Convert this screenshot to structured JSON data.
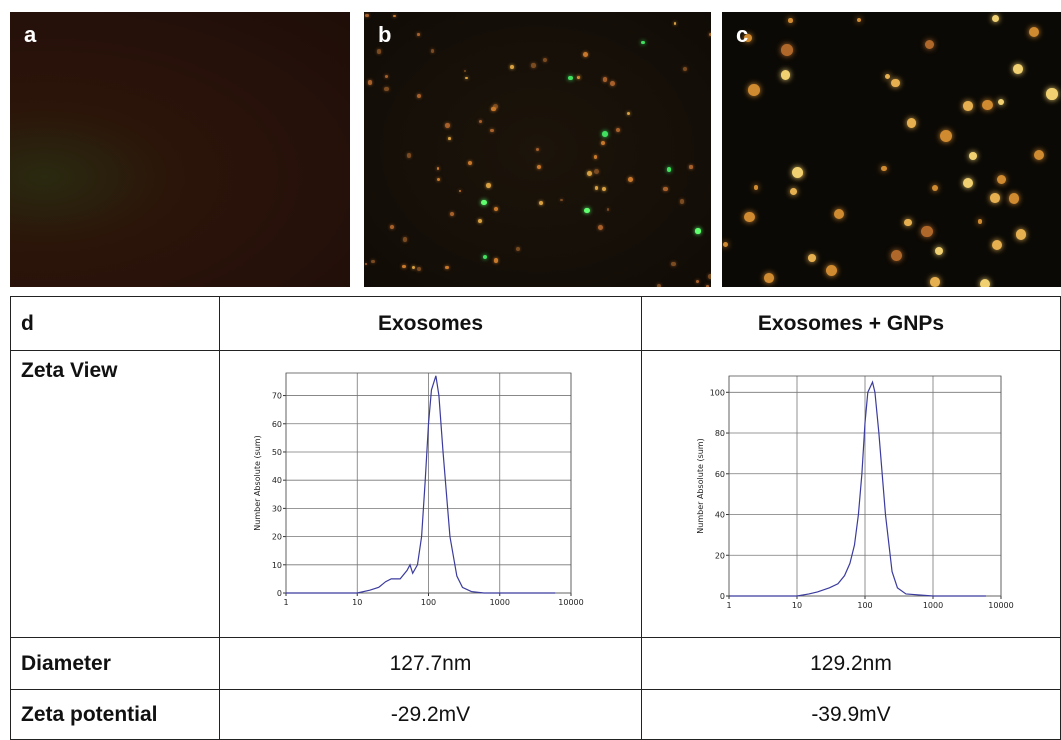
{
  "panels": [
    {
      "label": "a"
    },
    {
      "label": "b"
    },
    {
      "label": "c"
    }
  ],
  "table": {
    "header": [
      "d",
      "Exosomes",
      "Exosomes + GNPs"
    ],
    "rows": [
      [
        "Zeta View"
      ],
      [
        "Diameter",
        "127.7nm",
        "129.2nm"
      ],
      [
        "Zeta potential",
        "-29.2mV",
        "-39.9mV"
      ]
    ]
  },
  "chart_data": [
    {
      "type": "line",
      "y_label": "Number Absolute (sum)",
      "log_x": true,
      "grid": true,
      "color": "#3b3b9e",
      "x": [
        1,
        5,
        10,
        15,
        20,
        25,
        30,
        40,
        50,
        55,
        60,
        70,
        80,
        90,
        100,
        110,
        127,
        140,
        160,
        200,
        250,
        300,
        400,
        600,
        1000,
        6000
      ],
      "values": [
        0,
        0,
        0,
        1,
        2,
        4,
        5,
        5,
        8,
        10,
        7,
        10,
        20,
        40,
        60,
        72,
        77,
        70,
        50,
        20,
        6,
        2,
        0.5,
        0,
        0,
        0
      ],
      "xlim": [
        1,
        10000
      ],
      "xticks": [
        1,
        10,
        100,
        1000,
        10000
      ],
      "ylim": [
        0,
        78
      ],
      "yticks": [
        0,
        10,
        20,
        30,
        40,
        50,
        60,
        70
      ]
    },
    {
      "type": "line",
      "y_label": "Number Absolute (sum)",
      "log_x": true,
      "grid": true,
      "color": "#3b3b9e",
      "x": [
        1,
        5,
        10,
        15,
        20,
        30,
        40,
        50,
        60,
        70,
        80,
        90,
        100,
        110,
        129,
        140,
        160,
        200,
        250,
        300,
        400,
        1000,
        6000
      ],
      "values": [
        0,
        0,
        0,
        1,
        2,
        4,
        6,
        10,
        16,
        25,
        40,
        60,
        85,
        100,
        105,
        100,
        80,
        40,
        12,
        4,
        1,
        0,
        0
      ],
      "xlim": [
        1,
        10000
      ],
      "xticks": [
        1,
        10,
        100,
        1000,
        10000
      ],
      "ylim": [
        0,
        108
      ],
      "yticks": [
        0,
        20,
        40,
        60,
        80,
        100
      ]
    }
  ]
}
